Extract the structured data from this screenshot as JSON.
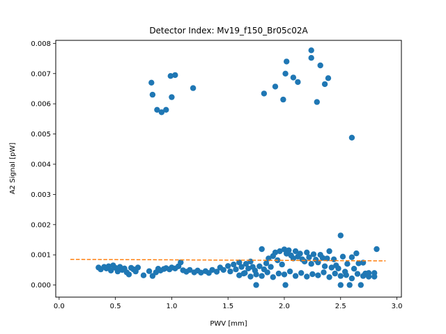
{
  "chart_data": {
    "type": "scatter",
    "title": "Detector Index: Mv19_f150_Br05c02A",
    "xlabel": "PWV [mm]",
    "ylabel": "A2 Signal [pW]",
    "xlim": [
      -0.03,
      3.04
    ],
    "ylim": [
      -0.0004,
      0.0081
    ],
    "x_ticks": [
      0.0,
      0.5,
      1.0,
      1.5,
      2.0,
      2.5,
      3.0
    ],
    "x_tick_labels": [
      "0.0",
      "0.5",
      "1.0",
      "1.5",
      "2.0",
      "2.5",
      "3.0"
    ],
    "y_ticks": [
      0.0,
      0.001,
      0.002,
      0.003,
      0.004,
      0.005,
      0.006,
      0.007,
      0.008
    ],
    "y_tick_labels": [
      "0.000",
      "0.001",
      "0.002",
      "0.003",
      "0.004",
      "0.005",
      "0.006",
      "0.007",
      "0.008"
    ],
    "grid": false,
    "colors": {
      "points": "#1f77b4",
      "fit": "#ff7f0e"
    },
    "series": [
      {
        "kind": "points",
        "points": [
          [
            0.82,
            0.0067
          ],
          [
            0.83,
            0.0063
          ],
          [
            0.87,
            0.0058
          ],
          [
            0.91,
            0.00572
          ],
          [
            0.95,
            0.0058
          ],
          [
            0.99,
            0.00692
          ],
          [
            1.0,
            0.00622
          ],
          [
            1.03,
            0.00695
          ],
          [
            1.19,
            0.00652
          ],
          [
            1.82,
            0.00634
          ],
          [
            1.92,
            0.00657
          ],
          [
            1.99,
            0.00614
          ],
          [
            2.01,
            0.007
          ],
          [
            2.02,
            0.0074
          ],
          [
            2.08,
            0.00687
          ],
          [
            2.12,
            0.00672
          ],
          [
            2.24,
            0.00777
          ],
          [
            2.24,
            0.00752
          ],
          [
            2.29,
            0.00606
          ],
          [
            2.32,
            0.00727
          ],
          [
            2.36,
            0.00665
          ],
          [
            2.39,
            0.00685
          ],
          [
            2.6,
            0.00488
          ],
          [
            2.5,
            0.00164
          ],
          [
            0.35,
            0.00058
          ],
          [
            0.37,
            0.00052
          ],
          [
            0.4,
            0.0006
          ],
          [
            0.42,
            0.00055
          ],
          [
            0.44,
            0.00062
          ],
          [
            0.46,
            0.00048
          ],
          [
            0.48,
            0.00065
          ],
          [
            0.5,
            0.00057
          ],
          [
            0.52,
            0.00045
          ],
          [
            0.54,
            0.0006
          ],
          [
            0.56,
            0.0005
          ],
          [
            0.58,
            0.00055
          ],
          [
            0.6,
            0.00042
          ],
          [
            0.62,
            0.00035
          ],
          [
            0.64,
            0.00057
          ],
          [
            0.66,
            0.00052
          ],
          [
            0.68,
            0.00045
          ],
          [
            0.7,
            0.00058
          ],
          [
            0.75,
            0.00032
          ],
          [
            0.8,
            0.00046
          ],
          [
            0.83,
            0.0003
          ],
          [
            0.86,
            0.00042
          ],
          [
            0.88,
            0.00054
          ],
          [
            0.9,
            0.00048
          ],
          [
            0.93,
            0.00053
          ],
          [
            0.95,
            0.00056
          ],
          [
            0.98,
            0.00052
          ],
          [
            1.0,
            0.00058
          ],
          [
            1.03,
            0.00055
          ],
          [
            1.06,
            0.00062
          ],
          [
            1.08,
            0.00075
          ],
          [
            1.1,
            0.00049
          ],
          [
            1.13,
            0.00044
          ],
          [
            1.16,
            0.0005
          ],
          [
            1.2,
            0.00042
          ],
          [
            1.23,
            0.00048
          ],
          [
            1.26,
            0.00041
          ],
          [
            1.3,
            0.00046
          ],
          [
            1.33,
            0.0004
          ],
          [
            1.36,
            0.0005
          ],
          [
            1.4,
            0.00044
          ],
          [
            1.43,
            0.00058
          ],
          [
            1.46,
            0.0005
          ],
          [
            1.5,
            0.00063
          ],
          [
            1.52,
            0.00045
          ],
          [
            1.55,
            0.00068
          ],
          [
            1.57,
            0.00052
          ],
          [
            1.6,
            0.00075
          ],
          [
            1.62,
            0.0006
          ],
          [
            1.64,
            0.00038
          ],
          [
            1.66,
            0.0007
          ],
          [
            1.68,
            0.00055
          ],
          [
            1.7,
            0.00078
          ],
          [
            1.72,
            0.0006
          ],
          [
            1.74,
            0.00048
          ],
          [
            1.75,
            0.0
          ],
          [
            1.78,
            0.00062
          ],
          [
            1.8,
            0.00119
          ],
          [
            1.82,
            0.00052
          ],
          [
            1.84,
            0.00072
          ],
          [
            1.86,
            0.00088
          ],
          [
            1.88,
            0.0006
          ],
          [
            1.9,
            0.00096
          ],
          [
            1.92,
            0.00108
          ],
          [
            1.94,
            0.00082
          ],
          [
            1.96,
            0.00112
          ],
          [
            1.98,
            0.00068
          ],
          [
            2.0,
            0.00118
          ],
          [
            2.01,
            0.0
          ],
          [
            2.02,
            0.00104
          ],
          [
            2.04,
            0.00115
          ],
          [
            2.06,
            0.00098
          ],
          [
            2.08,
            0.00088
          ],
          [
            2.1,
            0.00112
          ],
          [
            2.12,
            0.00094
          ],
          [
            2.14,
            0.00104
          ],
          [
            2.16,
            0.00085
          ],
          [
            2.18,
            0.00078
          ],
          [
            2.2,
            0.00108
          ],
          [
            2.22,
            0.00092
          ],
          [
            2.24,
            0.0007
          ],
          [
            2.26,
            0.00102
          ],
          [
            2.28,
            0.00084
          ],
          [
            2.3,
            0.00075
          ],
          [
            2.32,
            0.001
          ],
          [
            2.34,
            0.0009
          ],
          [
            2.36,
            0.00062
          ],
          [
            2.38,
            0.00088
          ],
          [
            2.4,
            0.00112
          ],
          [
            2.42,
            0.00058
          ],
          [
            2.44,
            0.00085
          ],
          [
            2.46,
            0.00065
          ],
          [
            2.48,
            0.00055
          ],
          [
            2.5,
            0.0
          ],
          [
            2.52,
            0.00094
          ],
          [
            2.54,
            0.00044
          ],
          [
            2.56,
            0.0007
          ],
          [
            2.58,
            0.0
          ],
          [
            2.6,
            0.00092
          ],
          [
            2.62,
            0.00054
          ],
          [
            2.64,
            0.00105
          ],
          [
            2.66,
            0.00072
          ],
          [
            2.68,
            0.0
          ],
          [
            2.7,
            0.00074
          ],
          [
            2.72,
            0.00038
          ],
          [
            2.75,
            0.00028
          ],
          [
            2.8,
            0.0004
          ],
          [
            2.82,
            0.00119
          ],
          [
            1.6,
            0.00032
          ],
          [
            1.7,
            0.00028
          ],
          [
            1.8,
            0.0003
          ],
          [
            1.9,
            0.00026
          ],
          [
            2.0,
            0.00035
          ],
          [
            2.1,
            0.0003
          ],
          [
            2.2,
            0.00028
          ],
          [
            2.3,
            0.00032
          ],
          [
            2.4,
            0.00026
          ],
          [
            2.5,
            0.0003
          ],
          [
            2.6,
            0.00022
          ],
          [
            2.7,
            0.0003
          ],
          [
            1.65,
            0.0004
          ],
          [
            1.75,
            0.00035
          ],
          [
            1.85,
            0.00042
          ],
          [
            1.95,
            0.00038
          ],
          [
            2.05,
            0.00045
          ],
          [
            2.15,
            0.0004
          ],
          [
            2.25,
            0.00036
          ],
          [
            2.35,
            0.00042
          ],
          [
            2.45,
            0.00038
          ],
          [
            2.55,
            0.00033
          ],
          [
            2.65,
            0.00037
          ],
          [
            2.75,
            0.0004
          ],
          [
            2.8,
            0.00028
          ]
        ]
      },
      {
        "kind": "fit-line",
        "points": [
          [
            0.1,
            0.00085
          ],
          [
            2.9,
            0.0008
          ]
        ]
      }
    ]
  }
}
